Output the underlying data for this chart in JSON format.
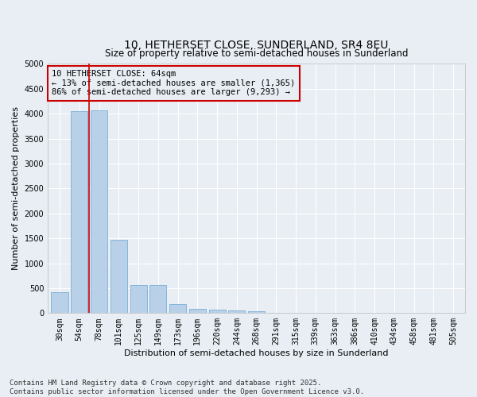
{
  "title": "10, HETHERSET CLOSE, SUNDERLAND, SR4 8EU",
  "subtitle": "Size of property relative to semi-detached houses in Sunderland",
  "xlabel": "Distribution of semi-detached houses by size in Sunderland",
  "ylabel": "Number of semi-detached properties",
  "categories": [
    "30sqm",
    "54sqm",
    "78sqm",
    "101sqm",
    "125sqm",
    "149sqm",
    "173sqm",
    "196sqm",
    "220sqm",
    "244sqm",
    "268sqm",
    "291sqm",
    "315sqm",
    "339sqm",
    "363sqm",
    "386sqm",
    "410sqm",
    "434sqm",
    "458sqm",
    "481sqm",
    "505sqm"
  ],
  "values": [
    420,
    4050,
    4060,
    1470,
    560,
    555,
    175,
    90,
    75,
    55,
    40,
    0,
    0,
    0,
    0,
    0,
    0,
    0,
    0,
    0,
    0
  ],
  "bar_color": "#b8d0e8",
  "bar_edge_color": "#7aafd4",
  "vline_x": 1.5,
  "vline_color": "#cc0000",
  "annotation_title": "10 HETHERSET CLOSE: 64sqm",
  "annotation_line1": "← 13% of semi-detached houses are smaller (1,365)",
  "annotation_line2": "86% of semi-detached houses are larger (9,293) →",
  "annotation_box_color": "#cc0000",
  "ylim": [
    0,
    5000
  ],
  "yticks": [
    0,
    500,
    1000,
    1500,
    2000,
    2500,
    3000,
    3500,
    4000,
    4500,
    5000
  ],
  "footer_line1": "Contains HM Land Registry data © Crown copyright and database right 2025.",
  "footer_line2": "Contains public sector information licensed under the Open Government Licence v3.0.",
  "background_color": "#e8eef4",
  "grid_color": "#ffffff",
  "title_fontsize": 10,
  "subtitle_fontsize": 8.5,
  "xlabel_fontsize": 8,
  "ylabel_fontsize": 8,
  "tick_fontsize": 7,
  "annotation_fontsize": 7.5,
  "footer_fontsize": 6.5
}
